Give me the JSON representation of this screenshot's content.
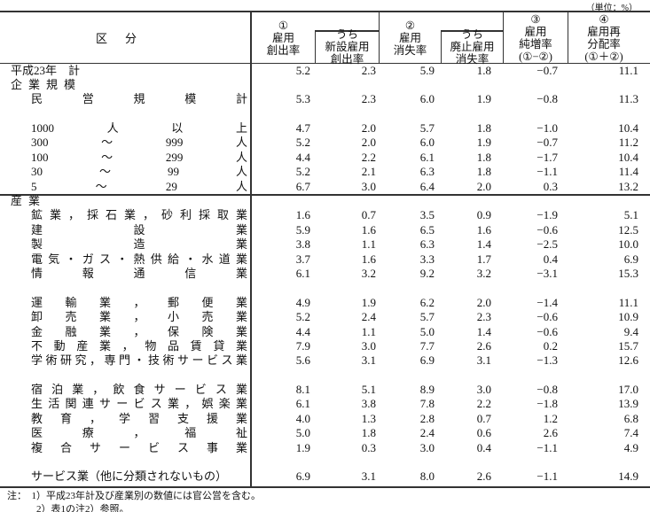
{
  "unit": "（単位：%）",
  "header": {
    "kubun": "区分",
    "c1": [
      "①",
      "雇用",
      "創出率"
    ],
    "c2": [
      "うち",
      "新設雇用",
      "創出率"
    ],
    "c3": [
      "②",
      "雇用",
      "消失率"
    ],
    "c4": [
      "うち",
      "廃止雇用",
      "消失率"
    ],
    "c5": [
      "③",
      "雇用",
      "純増率",
      "(①−②)"
    ],
    "c6": [
      "④",
      "雇用再",
      "分配率",
      "(①＋②)"
    ]
  },
  "rows": [
    {
      "label": "平成23年　計",
      "style": "top",
      "values": [
        "5.2",
        "2.3",
        "5.9",
        "1.8",
        "−0.7",
        "11.1"
      ]
    },
    {
      "label": "企業規模",
      "style": "wide",
      "values": []
    },
    {
      "label": "民営規模計",
      "style": "spread",
      "values": [
        "5.3",
        "2.3",
        "6.0",
        "1.9",
        "−0.8",
        "11.3"
      ]
    },
    {
      "label": "",
      "style": "blank",
      "values": []
    },
    {
      "parts": [
        "1000",
        "人",
        "以",
        "上"
      ],
      "style": "parts",
      "values": [
        "4.7",
        "2.0",
        "5.7",
        "1.8",
        "−1.0",
        "10.4"
      ]
    },
    {
      "parts": [
        "300",
        "～",
        "999",
        "人"
      ],
      "style": "parts",
      "values": [
        "5.2",
        "2.0",
        "6.0",
        "1.9",
        "−0.7",
        "11.2"
      ]
    },
    {
      "parts": [
        "100",
        "～",
        "299",
        "人"
      ],
      "style": "parts",
      "values": [
        "4.4",
        "2.2",
        "6.1",
        "1.8",
        "−1.7",
        "10.4"
      ]
    },
    {
      "parts": [
        "30",
        "～",
        "99",
        "人"
      ],
      "style": "parts",
      "values": [
        "5.2",
        "2.1",
        "6.3",
        "1.8",
        "−1.1",
        "11.4"
      ]
    },
    {
      "parts": [
        "5",
        "～",
        "29",
        "人"
      ],
      "style": "parts",
      "values": [
        "6.7",
        "3.0",
        "6.4",
        "2.0",
        "0.3",
        "13.2"
      ]
    },
    {
      "label": "産業",
      "style": "wide",
      "values": []
    },
    {
      "label": "鉱業，採石業，砂利採取業",
      "style": "spread",
      "values": [
        "1.6",
        "0.7",
        "3.5",
        "0.9",
        "−1.9",
        "5.1"
      ]
    },
    {
      "label": "建設業",
      "style": "spread",
      "values": [
        "5.9",
        "1.6",
        "6.5",
        "1.6",
        "−0.6",
        "12.5"
      ]
    },
    {
      "label": "製造業",
      "style": "spread",
      "values": [
        "3.8",
        "1.1",
        "6.3",
        "1.4",
        "−2.5",
        "10.0"
      ]
    },
    {
      "label": "電気・ガス・熱供給・水道業",
      "style": "spread",
      "values": [
        "3.7",
        "1.6",
        "3.3",
        "1.7",
        "0.4",
        "6.9"
      ]
    },
    {
      "label": "情報通信業",
      "style": "spread",
      "values": [
        "6.1",
        "3.2",
        "9.2",
        "3.2",
        "−3.1",
        "15.3"
      ]
    },
    {
      "label": "",
      "style": "blank",
      "values": []
    },
    {
      "label": "運輸業，郵便業",
      "style": "spread",
      "values": [
        "4.9",
        "1.9",
        "6.2",
        "2.0",
        "−1.4",
        "11.1"
      ]
    },
    {
      "label": "卸売業，小売業",
      "style": "spread",
      "values": [
        "5.2",
        "2.4",
        "5.7",
        "2.3",
        "−0.6",
        "10.9"
      ]
    },
    {
      "label": "金融業，保険業",
      "style": "spread",
      "values": [
        "4.4",
        "1.1",
        "5.0",
        "1.4",
        "−0.6",
        "9.4"
      ]
    },
    {
      "label": "不動産業，物品賃貸業",
      "style": "spread",
      "values": [
        "7.9",
        "3.0",
        "7.7",
        "2.6",
        "0.2",
        "15.7"
      ]
    },
    {
      "label": "学術研究，専門・技術サービス業",
      "style": "spread",
      "values": [
        "5.6",
        "3.1",
        "6.9",
        "3.1",
        "−1.3",
        "12.6"
      ]
    },
    {
      "label": "",
      "style": "blank",
      "values": []
    },
    {
      "label": "宿泊業，飲食サービス業",
      "style": "spread",
      "values": [
        "8.1",
        "5.1",
        "8.9",
        "3.0",
        "−0.8",
        "17.0"
      ]
    },
    {
      "label": "生活関連サービス業，娯楽業",
      "style": "spread",
      "values": [
        "6.1",
        "3.8",
        "7.8",
        "2.2",
        "−1.8",
        "13.9"
      ]
    },
    {
      "label": "教育，学習支援業",
      "style": "spread",
      "values": [
        "4.0",
        "1.3",
        "2.8",
        "0.7",
        "1.2",
        "6.8"
      ]
    },
    {
      "label": "医療，福祉",
      "style": "spread",
      "values": [
        "5.0",
        "1.8",
        "2.4",
        "0.6",
        "2.6",
        "7.4"
      ]
    },
    {
      "label": "複合サービス事業",
      "style": "spread",
      "values": [
        "1.9",
        "0.3",
        "3.0",
        "0.4",
        "−1.1",
        "4.9"
      ]
    },
    {
      "label": "",
      "style": "blank",
      "values": []
    },
    {
      "label": "サービス業（他に分類されないもの）",
      "style": "plain",
      "values": [
        "6.9",
        "3.1",
        "8.0",
        "2.6",
        "−1.1",
        "14.9"
      ]
    }
  ],
  "notes": [
    "注：　1）平成23年計及び産業別の数値には官公営を含む。",
    "　　　2）表1の注2）参照。"
  ]
}
